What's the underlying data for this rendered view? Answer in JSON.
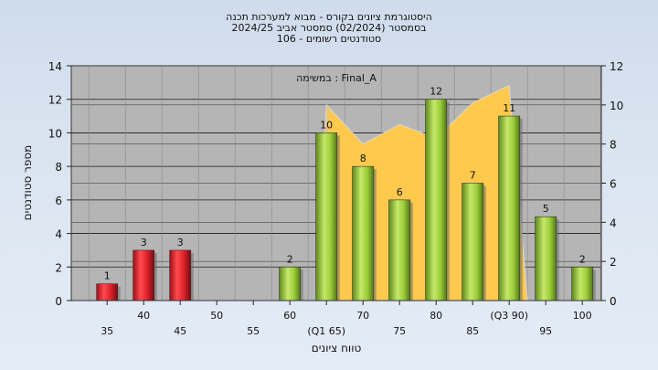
{
  "chart_data": {
    "type": "bar",
    "title_lines": [
      "היסטוגרמת ציונים בקורס - מבוא למערכות תכנה",
      "בסמסטר  (02/2024)  סמסטר אביב 2024/25",
      "סטודנטים רשומים - 106"
    ],
    "annotation": "במשימה : Final_A",
    "xlabel": "טווח ציונים",
    "ylabel": "מספר סטודנטים",
    "ylim": [
      0,
      14
    ],
    "y_ticks": [
      0,
      2,
      4,
      6,
      8,
      10,
      12,
      14
    ],
    "y2lim": [
      0,
      12
    ],
    "y2_ticks": [
      0,
      2,
      4,
      6,
      8,
      10,
      12
    ],
    "grid": true,
    "x_labels": [
      "35",
      "40",
      "45",
      "50",
      "55",
      "60",
      "(Q1 65)",
      "70",
      "75",
      "80",
      "85",
      "(Q3 90)",
      "95",
      "100"
    ],
    "bars": [
      {
        "label": "35",
        "value": 1,
        "color": "red"
      },
      {
        "label": "40",
        "value": 3,
        "color": "red"
      },
      {
        "label": "45",
        "value": 3,
        "color": "red"
      },
      {
        "label": "50",
        "value": 0,
        "color": "red"
      },
      {
        "label": "55",
        "value": 0,
        "color": "red"
      },
      {
        "label": "60",
        "value": 2,
        "color": "green"
      },
      {
        "label": "(Q1 65)",
        "value": 10,
        "color": "green"
      },
      {
        "label": "70",
        "value": 8,
        "color": "green"
      },
      {
        "label": "75",
        "value": 6,
        "color": "green"
      },
      {
        "label": "80",
        "value": 12,
        "color": "green"
      },
      {
        "label": "85",
        "value": 7,
        "color": "green"
      },
      {
        "label": "(Q3 90)",
        "value": 11,
        "color": "green"
      },
      {
        "label": "95",
        "value": 5,
        "color": "green"
      },
      {
        "label": "100",
        "value": 2,
        "color": "green"
      }
    ],
    "area_series": {
      "x_index": [
        5.7,
        6,
        7,
        8,
        9,
        10,
        11,
        11.5
      ],
      "values": [
        0,
        10,
        8,
        9,
        8.3,
        10.1,
        11,
        0
      ]
    },
    "colors": {
      "plot_bg": "#b5b5b5",
      "area_fill": "#ffc94d",
      "bar_red": "#e0232b",
      "bar_green": "#9ccc3a"
    }
  }
}
